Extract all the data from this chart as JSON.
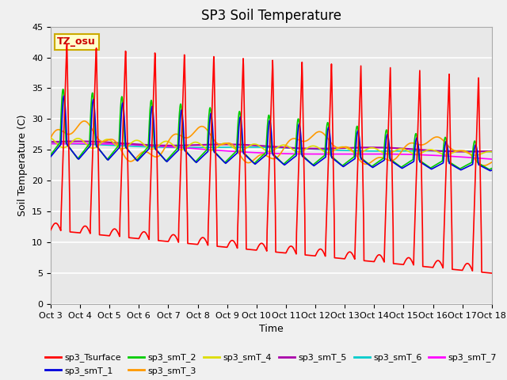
{
  "title": "SP3 Soil Temperature",
  "xlabel": "Time",
  "ylabel": "Soil Temperature (C)",
  "ylim": [
    0,
    45
  ],
  "xlim": [
    0,
    15
  ],
  "x_tick_labels": [
    "Oct 3",
    "Oct 4",
    "Oct 5",
    "Oct 6",
    "Oct 7",
    "Oct 8",
    "Oct 9",
    "Oct 10",
    "Oct 11",
    "Oct 12",
    "Oct 13",
    "Oct 14",
    "Oct 15",
    "Oct 16",
    "Oct 17",
    "Oct 18"
  ],
  "annotation_text": "TZ_osu",
  "annotation_color": "#cc0000",
  "annotation_bg": "#ffffcc",
  "annotation_border": "#ccaa00",
  "series_colors": {
    "sp3_Tsurface": "#ff0000",
    "sp3_smT_1": "#0000dd",
    "sp3_smT_2": "#00cc00",
    "sp3_smT_3": "#ff9900",
    "sp3_smT_4": "#dddd00",
    "sp3_smT_5": "#aa00aa",
    "sp3_smT_6": "#00cccc",
    "sp3_smT_7": "#ff00ff"
  },
  "bg_color": "#f0f0f0",
  "plot_bg": "#e8e8e8",
  "grid_color": "#ffffff",
  "title_fontsize": 12,
  "axis_fontsize": 9,
  "tick_fontsize": 8
}
